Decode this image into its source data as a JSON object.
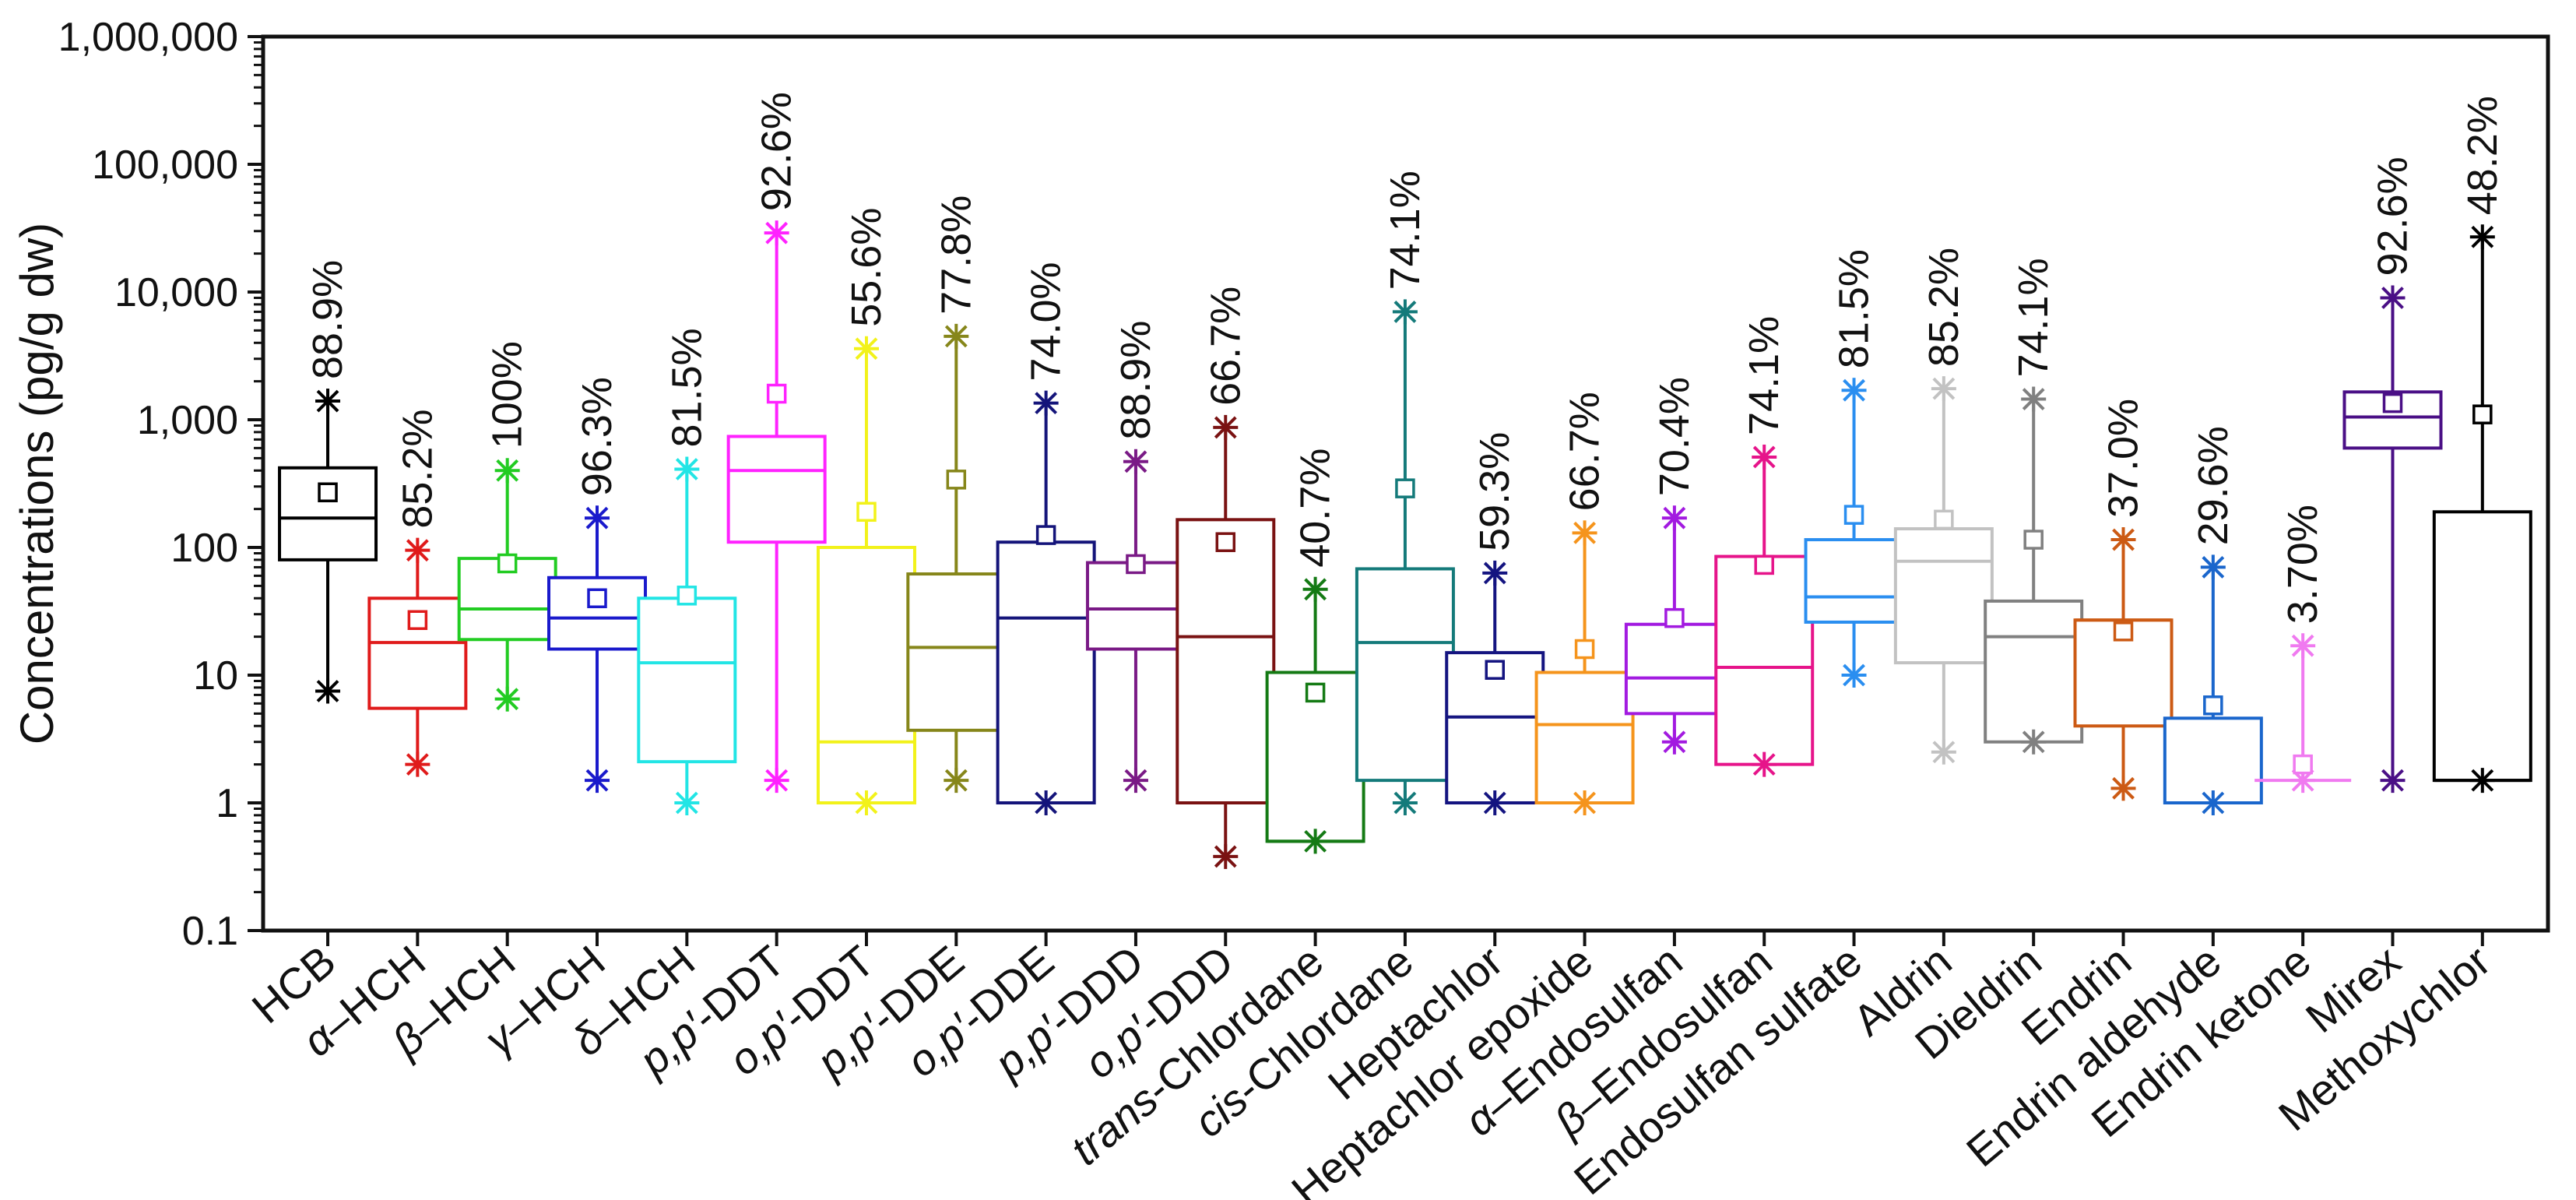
{
  "chart_data": {
    "type": "box",
    "title": "",
    "xlabel": "",
    "ylabel": "Concentrations (pg/g dw)",
    "yscale": "log",
    "ylim": [
      0.1,
      1000000
    ],
    "yticks": [
      0.1,
      1,
      10,
      100,
      1000,
      10000,
      100000,
      1000000
    ],
    "ytick_labels": [
      "0.1",
      "1",
      "10",
      "100",
      "1,000",
      "10,000",
      "100,000",
      "1,000,000"
    ],
    "legend": "none",
    "series": [
      {
        "name": "HCB",
        "label_parts": [
          {
            "t": "HCB",
            "i": false
          }
        ],
        "color": "#000000",
        "q1": 80,
        "median": 170,
        "q3": 420,
        "mean": 270,
        "whisker_low": 7.5,
        "whisker_high": 1400,
        "min": 7.5,
        "max": 1400,
        "detection_rate": "88.9%"
      },
      {
        "name": "α–HCH",
        "label_parts": [
          {
            "t": "α",
            "i": true
          },
          {
            "t": "–HCH",
            "i": false
          }
        ],
        "color": "#e01b1b",
        "q1": 5.5,
        "median": 18,
        "q3": 40,
        "mean": 27,
        "whisker_low": 2,
        "whisker_high": 95,
        "min": 2,
        "max": 95,
        "detection_rate": "85.2%"
      },
      {
        "name": "β–HCH",
        "label_parts": [
          {
            "t": "β",
            "i": true
          },
          {
            "t": "–HCH",
            "i": false
          }
        ],
        "color": "#22cc22",
        "q1": 19,
        "median": 33,
        "q3": 82,
        "mean": 75,
        "whisker_low": 6.5,
        "whisker_high": 400,
        "min": 6.5,
        "max": 400,
        "detection_rate": "100%"
      },
      {
        "name": "γ–HCH",
        "label_parts": [
          {
            "t": "γ",
            "i": true
          },
          {
            "t": "–HCH",
            "i": false
          }
        ],
        "color": "#1a1acc",
        "q1": 16,
        "median": 28,
        "q3": 58,
        "mean": 40,
        "whisker_low": 1.5,
        "whisker_high": 170,
        "min": 1.5,
        "max": 170,
        "detection_rate": "96.3%"
      },
      {
        "name": "δ–HCH",
        "label_parts": [
          {
            "t": "δ",
            "i": true
          },
          {
            "t": "–HCH",
            "i": false
          }
        ],
        "color": "#22e5e5",
        "q1": 2.1,
        "median": 12.5,
        "q3": 40,
        "mean": 42,
        "whisker_low": 1,
        "whisker_high": 410,
        "min": 1,
        "max": 410,
        "detection_rate": "81.5%"
      },
      {
        "name": "p,p′-DDT",
        "label_parts": [
          {
            "t": "p,p′",
            "i": true
          },
          {
            "t": "-DDT",
            "i": false
          }
        ],
        "color": "#ff22ff",
        "q1": 110,
        "median": 400,
        "q3": 740,
        "mean": 1600,
        "whisker_low": 1.5,
        "whisker_high": 29000,
        "min": 1.5,
        "max": 29000,
        "detection_rate": "92.6%"
      },
      {
        "name": "o,p′-DDT",
        "label_parts": [
          {
            "t": "o,p′",
            "i": true
          },
          {
            "t": "-DDT",
            "i": false
          }
        ],
        "color": "#f2f21a",
        "q1": 1,
        "median": 3,
        "q3": 100,
        "mean": 190,
        "whisker_low": 1,
        "whisker_high": 3600,
        "min": 1,
        "max": 3600,
        "detection_rate": "55.6%"
      },
      {
        "name": "p,p′-DDE",
        "label_parts": [
          {
            "t": "p,p′",
            "i": true
          },
          {
            "t": "-DDE",
            "i": false
          }
        ],
        "color": "#86861a",
        "q1": 3.7,
        "median": 16.5,
        "q3": 62,
        "mean": 340,
        "whisker_low": 1.5,
        "whisker_high": 4500,
        "min": 1.5,
        "max": 4500,
        "detection_rate": "77.8%"
      },
      {
        "name": "o,p′-DDE",
        "label_parts": [
          {
            "t": "o,p′",
            "i": true
          },
          {
            "t": "-DDE",
            "i": false
          }
        ],
        "color": "#14147a",
        "q1": 1,
        "median": 28,
        "q3": 110,
        "mean": 125,
        "whisker_low": 1,
        "whisker_high": 1350,
        "min": 1,
        "max": 1350,
        "detection_rate": "74.0%"
      },
      {
        "name": "p,p′-DDD",
        "label_parts": [
          {
            "t": "p,p′",
            "i": true
          },
          {
            "t": "-DDD",
            "i": false
          }
        ],
        "color": "#7a1a86",
        "q1": 16,
        "median": 33,
        "q3": 76,
        "mean": 74,
        "whisker_low": 1.5,
        "whisker_high": 470,
        "min": 1.5,
        "max": 470,
        "detection_rate": "88.9%"
      },
      {
        "name": "o,p′-DDD",
        "label_parts": [
          {
            "t": "o,p′",
            "i": true
          },
          {
            "t": "-DDD",
            "i": false
          }
        ],
        "color": "#7a1212",
        "q1": 1,
        "median": 20,
        "q3": 165,
        "mean": 110,
        "whisker_low": 0.38,
        "whisker_high": 870,
        "min": 0.38,
        "max": 870,
        "detection_rate": "66.7%"
      },
      {
        "name": "trans-Chlordane",
        "label_parts": [
          {
            "t": "trans",
            "i": true
          },
          {
            "t": "-Chlordane",
            "i": false
          }
        ],
        "color": "#147a14",
        "q1": 0.5,
        "median": 0.5,
        "q3": 10.5,
        "mean": 7.3,
        "whisker_low": 0.5,
        "whisker_high": 47,
        "min": 0.5,
        "max": 47,
        "detection_rate": "40.7%"
      },
      {
        "name": "cis-Chlordane",
        "label_parts": [
          {
            "t": "cis",
            "i": true
          },
          {
            "t": "-Chlordane",
            "i": false
          }
        ],
        "color": "#147a7a",
        "q1": 1.5,
        "median": 18,
        "q3": 68,
        "mean": 290,
        "whisker_low": 1,
        "whisker_high": 7000,
        "min": 1,
        "max": 7000,
        "detection_rate": "74.1%"
      },
      {
        "name": "Heptachlor",
        "label_parts": [
          {
            "t": "Heptachlor",
            "i": false
          }
        ],
        "color": "#141480",
        "q1": 1,
        "median": 4.7,
        "q3": 15,
        "mean": 11,
        "whisker_low": 1,
        "whisker_high": 63,
        "min": 1,
        "max": 63,
        "detection_rate": "59.3%"
      },
      {
        "name": "Heptachlor epoxide",
        "label_parts": [
          {
            "t": "Heptachlor epoxide",
            "i": false
          }
        ],
        "color": "#f5941c",
        "q1": 1,
        "median": 4.1,
        "q3": 10.5,
        "mean": 16,
        "whisker_low": 1,
        "whisker_high": 130,
        "min": 1,
        "max": 130,
        "detection_rate": "66.7%"
      },
      {
        "name": "α–Endosulfan",
        "label_parts": [
          {
            "t": "α",
            "i": true
          },
          {
            "t": "–Endosulfan",
            "i": false
          }
        ],
        "color": "#a21ae0",
        "q1": 5,
        "median": 9.5,
        "q3": 25,
        "mean": 28,
        "whisker_low": 3,
        "whisker_high": 170,
        "min": 3,
        "max": 170,
        "detection_rate": "70.4%"
      },
      {
        "name": "β–Endosulfan",
        "label_parts": [
          {
            "t": "β",
            "i": true
          },
          {
            "t": "–Endosulfan",
            "i": false
          }
        ],
        "color": "#e6148a",
        "q1": 2,
        "median": 11.5,
        "q3": 85,
        "mean": 73,
        "whisker_low": 2,
        "whisker_high": 510,
        "min": 2,
        "max": 510,
        "detection_rate": "74.1%"
      },
      {
        "name": "Endosulfan sulfate",
        "label_parts": [
          {
            "t": "Endosulfan sulfate",
            "i": false
          }
        ],
        "color": "#2a8ef0",
        "q1": 26,
        "median": 41,
        "q3": 115,
        "mean": 180,
        "whisker_low": 10,
        "whisker_high": 1700,
        "min": 10,
        "max": 1700,
        "detection_rate": "81.5%"
      },
      {
        "name": "Aldrin",
        "label_parts": [
          {
            "t": "Aldrin",
            "i": false
          }
        ],
        "color": "#c2c2c2",
        "q1": 12.5,
        "median": 78,
        "q3": 140,
        "mean": 165,
        "whisker_low": 2.5,
        "whisker_high": 1750,
        "min": 2.5,
        "max": 1750,
        "detection_rate": "85.2%"
      },
      {
        "name": "Dieldrin",
        "label_parts": [
          {
            "t": "Dieldrin",
            "i": false
          }
        ],
        "color": "#808080",
        "q1": 3,
        "median": 20,
        "q3": 38,
        "mean": 115,
        "whisker_low": 3,
        "whisker_high": 1450,
        "min": 3,
        "max": 1450,
        "detection_rate": "74.1%"
      },
      {
        "name": "Endrin",
        "label_parts": [
          {
            "t": "Endrin",
            "i": false
          }
        ],
        "color": "#cc5a14",
        "q1": 4,
        "median": 27,
        "q3": 27,
        "mean": 22,
        "whisker_low": 1.3,
        "whisker_high": 115,
        "min": 1.3,
        "max": 115,
        "detection_rate": "37.0%"
      },
      {
        "name": "Endrin aldehyde",
        "label_parts": [
          {
            "t": "Endrin aldehyde",
            "i": false
          }
        ],
        "color": "#1a66cc",
        "q1": 1,
        "median": 1,
        "q3": 4.6,
        "mean": 5.8,
        "whisker_low": 1,
        "whisker_high": 70,
        "min": 1,
        "max": 70,
        "detection_rate": "29.6%"
      },
      {
        "name": "Endrin ketone",
        "label_parts": [
          {
            "t": "Endrin ketone",
            "i": false
          }
        ],
        "color": "#f07af0",
        "q1": 1.5,
        "median": 1.5,
        "q3": 1.5,
        "mean": 2,
        "whisker_low": 1.5,
        "whisker_high": 17,
        "min": 1.5,
        "max": 17,
        "detection_rate": "3.70%"
      },
      {
        "name": "Mirex",
        "label_parts": [
          {
            "t": "Mirex",
            "i": false
          }
        ],
        "color": "#4a0f86",
        "q1": 600,
        "median": 1050,
        "q3": 1650,
        "mean": 1350,
        "whisker_low": 1.5,
        "whisker_high": 9000,
        "min": 1.5,
        "max": 9000,
        "detection_rate": "92.6%"
      },
      {
        "name": "Methoxychlor",
        "label_parts": [
          {
            "t": "Methoxychlor",
            "i": false
          }
        ],
        "color": "#000000",
        "q1": 1.5,
        "median": 1.5,
        "q3": 190,
        "mean": 1100,
        "whisker_low": 1.5,
        "whisker_high": 27000,
        "min": 1.5,
        "max": 27000,
        "detection_rate": "48.2%"
      }
    ]
  }
}
